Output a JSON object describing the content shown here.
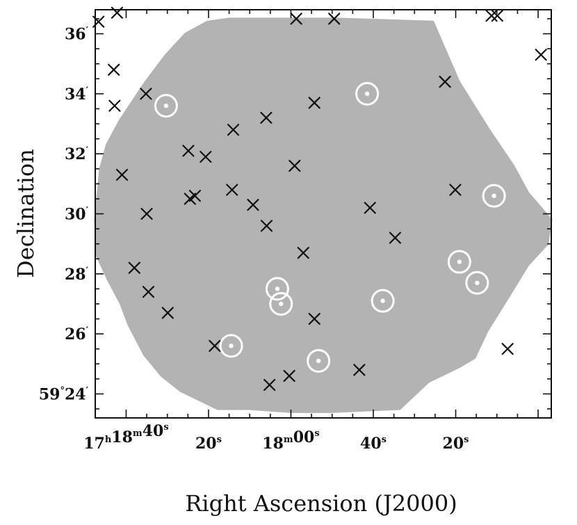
{
  "chart_data": {
    "type": "scatter",
    "title": "",
    "xlabel": "Right Ascension (J2000)",
    "ylabel": "Declination",
    "x_ticks": [
      {
        "h": "17",
        "m": "18",
        "s": "40",
        "sec": 40
      },
      {
        "s": "20",
        "sec": 20
      },
      {
        "m": "18",
        "s": "00",
        "sec": 0
      },
      {
        "s": "40",
        "sec": -20
      },
      {
        "s": "20",
        "sec": -40
      }
    ],
    "y_ticks": [
      {
        "label": "59°24′",
        "deg": "59",
        "min": "24",
        "value": 24
      },
      {
        "label": "26′",
        "min": "26",
        "value": 26
      },
      {
        "label": "28′",
        "min": "28",
        "value": 28
      },
      {
        "label": "30′",
        "min": "30",
        "value": 30
      },
      {
        "label": "32′",
        "min": "32",
        "value": 32
      },
      {
        "label": "34′",
        "min": "34",
        "value": 34
      },
      {
        "label": "36′",
        "min": "36",
        "value": 36
      }
    ],
    "xlim_sec": [
      47.5,
      -63.2
    ],
    "ylim_arcmin": [
      23.2,
      36.8
    ],
    "series": [
      {
        "marker": "x",
        "color": "#111111",
        "points": [
          [
            46.7,
            36.4
          ],
          [
            42.2,
            36.7
          ],
          [
            43.0,
            34.8
          ],
          [
            42.8,
            33.6
          ],
          [
            41.0,
            31.3
          ],
          [
            38.0,
            28.2
          ],
          [
            35.2,
            34.0
          ],
          [
            35.0,
            30.0
          ],
          [
            34.6,
            27.4
          ],
          [
            29.9,
            26.7
          ],
          [
            24.9,
            32.1
          ],
          [
            24.5,
            30.5
          ],
          [
            23.3,
            30.6
          ],
          [
            20.7,
            31.9
          ],
          [
            18.5,
            25.6
          ],
          [
            14.3,
            30.8
          ],
          [
            14.0,
            32.8
          ],
          [
            9.2,
            30.3
          ],
          [
            6.0,
            33.2
          ],
          [
            5.9,
            29.6
          ],
          [
            5.2,
            24.3
          ],
          [
            0.4,
            24.6
          ],
          [
            -0.9,
            31.6
          ],
          [
            -1.3,
            36.5
          ],
          [
            -3.0,
            28.7
          ],
          [
            -5.7,
            26.5
          ],
          [
            -5.7,
            33.7
          ],
          [
            -10.5,
            36.5
          ],
          [
            -16.6,
            24.8
          ],
          [
            -19.2,
            30.2
          ],
          [
            -25.3,
            29.2
          ],
          [
            -37.4,
            34.4
          ],
          [
            -39.9,
            30.8
          ],
          [
            -48.7,
            36.6
          ],
          [
            -50.1,
            36.6
          ],
          [
            -52.6,
            25.5
          ],
          [
            -60.7,
            35.3
          ]
        ]
      },
      {
        "marker": "circle-dot",
        "color": "#ffffff",
        "points": [
          [
            30.3,
            33.6
          ],
          [
            -18.5,
            34.0
          ],
          [
            -49.3,
            30.6
          ],
          [
            -40.9,
            28.4
          ],
          [
            -45.2,
            27.7
          ],
          [
            -22.3,
            27.1
          ],
          [
            3.3,
            27.5
          ],
          [
            2.4,
            27.0
          ],
          [
            14.5,
            25.6
          ],
          [
            -6.7,
            25.1
          ]
        ]
      }
    ],
    "coverage_polygon": [
      [
        14.9,
        36.5
      ],
      [
        -11.1,
        36.5
      ],
      [
        -34.5,
        36.4
      ],
      [
        -40.8,
        34.4
      ],
      [
        -48.1,
        32.8
      ],
      [
        -54.0,
        31.6
      ],
      [
        -57.6,
        30.7
      ],
      [
        -63.2,
        29.8
      ],
      [
        -62.3,
        29.0
      ],
      [
        -57.6,
        28.3
      ],
      [
        -53.6,
        27.4
      ],
      [
        -47.7,
        26.1
      ],
      [
        -44.6,
        25.2
      ],
      [
        -40.9,
        24.9
      ],
      [
        -33.4,
        24.4
      ],
      [
        -26.4,
        23.5
      ],
      [
        -10.0,
        23.4
      ],
      [
        0.0,
        23.4
      ],
      [
        10.2,
        23.5
      ],
      [
        17.8,
        23.5
      ],
      [
        26.8,
        24.1
      ],
      [
        31.4,
        24.6
      ],
      [
        35.6,
        25.3
      ],
      [
        39.4,
        26.3
      ],
      [
        41.3,
        27.0
      ],
      [
        44.4,
        27.8
      ],
      [
        47.1,
        28.6
      ],
      [
        47.5,
        29.8
      ],
      [
        46.3,
        31.5
      ],
      [
        44.7,
        32.3
      ],
      [
        41.6,
        33.1
      ],
      [
        35.3,
        34.4
      ],
      [
        30.3,
        35.3
      ],
      [
        25.6,
        36.0
      ],
      [
        20.3,
        36.4
      ]
    ]
  }
}
